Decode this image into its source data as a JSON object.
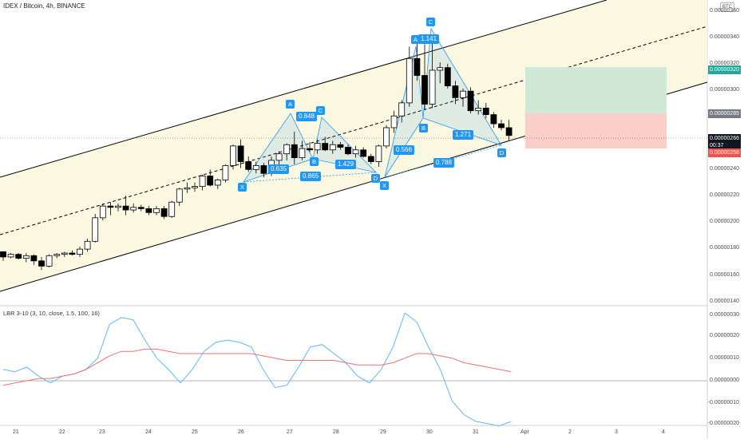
{
  "header": {
    "symbol_title": "IDEX / Bitcoin, 4h, BINANCE",
    "currency_badge": "BTC"
  },
  "price_axis": {
    "labels": [
      "0.00000360",
      "0.00000340",
      "0.00000320",
      "0.00000300",
      "0.00000280",
      "0.00000260",
      "0.00000240",
      "0.00000220",
      "0.00000200",
      "0.00000180",
      "0.00000160",
      "0.00000140"
    ],
    "tags": {
      "target": "0.00000320",
      "entry": "0.00000285",
      "current": "0.00000266",
      "countdown": "00:37",
      "stop": "0.00000258"
    }
  },
  "indicator": {
    "title": "LBR 3-10 (3, 10, close, 1.5, 100, 16)",
    "labels": [
      "0.00000030",
      "0.00000020",
      "0.00000010",
      "0.00000000",
      "-0.00000010",
      "-0.00000020"
    ]
  },
  "time_axis": {
    "labels": [
      "21",
      "22",
      "23",
      "24",
      "25",
      "26",
      "27",
      "28",
      "29",
      "30",
      "31",
      "Apr",
      "2",
      "3",
      "4"
    ]
  },
  "patterns": {
    "ratios": [
      "0.848",
      "0.635",
      "0.865",
      "1.429",
      "1.141",
      "0.566",
      "1.271",
      "0.788"
    ],
    "points": [
      "A",
      "B",
      "C",
      "D",
      "X",
      "A",
      "B",
      "C",
      "D",
      "X"
    ]
  },
  "colors": {
    "background": "#ffffff",
    "channel_fill": "#fbf8e2",
    "bull_candle": "#ffffff",
    "bear_candle": "#000000",
    "pattern_blue": "#2196f3",
    "target_zone": "#cfe9d6",
    "stop_zone": "#f9cfc8",
    "signal_line": "#e57373"
  },
  "chart_data": {
    "type": "candlestick",
    "interval": "4h",
    "x_dates": [
      "21",
      "22",
      "23",
      "24",
      "25",
      "26",
      "27",
      "28",
      "29",
      "30",
      "31"
    ],
    "ylim": [
      1.4e-06,
      3.6e-06
    ],
    "last_close": 2.66e-06,
    "position": {
      "entry": 2.85e-06,
      "target": 3.2e-06,
      "stop": 2.58e-06
    },
    "candles_ohlc": [
      [
        1.77,
        1.77,
        1.7,
        1.73
      ],
      [
        1.73,
        1.76,
        1.72,
        1.75
      ],
      [
        1.75,
        1.76,
        1.71,
        1.72
      ],
      [
        1.72,
        1.76,
        1.69,
        1.74
      ],
      [
        1.74,
        1.75,
        1.67,
        1.7
      ],
      [
        1.7,
        1.73,
        1.63,
        1.66
      ],
      [
        1.66,
        1.75,
        1.65,
        1.74
      ],
      [
        1.74,
        1.76,
        1.72,
        1.75
      ],
      [
        1.75,
        1.77,
        1.73,
        1.76
      ],
      [
        1.76,
        1.78,
        1.74,
        1.75
      ],
      [
        1.75,
        1.81,
        1.73,
        1.79
      ],
      [
        1.79,
        1.87,
        1.77,
        1.85
      ],
      [
        1.85,
        2.06,
        1.84,
        2.03
      ],
      [
        2.03,
        2.14,
        2.01,
        2.12
      ],
      [
        2.12,
        2.15,
        2.05,
        2.11
      ],
      [
        2.11,
        2.14,
        2.08,
        2.12
      ],
      [
        2.12,
        2.2,
        2.05,
        2.09
      ],
      [
        2.09,
        2.14,
        2.07,
        2.11
      ],
      [
        2.11,
        2.13,
        2.08,
        2.1
      ],
      [
        2.1,
        2.12,
        2.05,
        2.07
      ],
      [
        2.07,
        2.12,
        2.05,
        2.1
      ],
      [
        2.1,
        2.12,
        2.02,
        2.04
      ],
      [
        2.04,
        2.16,
        2.03,
        2.15
      ],
      [
        2.15,
        2.26,
        2.12,
        2.25
      ],
      [
        2.25,
        2.3,
        2.22,
        2.26
      ],
      [
        2.26,
        2.3,
        2.23,
        2.27
      ],
      [
        2.27,
        2.36,
        2.24,
        2.35
      ],
      [
        2.35,
        2.4,
        2.27,
        2.28
      ],
      [
        2.28,
        2.33,
        2.25,
        2.32
      ],
      [
        2.32,
        2.44,
        2.3,
        2.43
      ],
      [
        2.43,
        2.59,
        2.4,
        2.58
      ],
      [
        2.58,
        2.63,
        2.41,
        2.46
      ],
      [
        2.46,
        2.5,
        2.38,
        2.4
      ],
      [
        2.4,
        2.46,
        2.37,
        2.43
      ],
      [
        2.43,
        2.45,
        2.34,
        2.37
      ],
      [
        2.37,
        2.5,
        2.35,
        2.47
      ],
      [
        2.47,
        2.54,
        2.42,
        2.52
      ],
      [
        2.52,
        2.6,
        2.47,
        2.59
      ],
      [
        2.59,
        2.69,
        2.44,
        2.49
      ],
      [
        2.49,
        2.62,
        2.47,
        2.56
      ],
      [
        2.56,
        2.61,
        2.53,
        2.55
      ],
      [
        2.55,
        2.63,
        2.52,
        2.6
      ],
      [
        2.6,
        2.65,
        2.54,
        2.55
      ],
      [
        2.55,
        2.62,
        2.52,
        2.59
      ],
      [
        2.59,
        2.61,
        2.55,
        2.57
      ],
      [
        2.57,
        2.59,
        2.51,
        2.52
      ],
      [
        2.52,
        2.58,
        2.49,
        2.55
      ],
      [
        2.55,
        2.57,
        2.49,
        2.5
      ],
      [
        2.5,
        2.52,
        2.44,
        2.46
      ],
      [
        2.46,
        2.59,
        2.42,
        2.58
      ],
      [
        2.58,
        2.74,
        2.56,
        2.72
      ],
      [
        2.72,
        2.85,
        2.68,
        2.81
      ],
      [
        2.81,
        2.93,
        2.76,
        2.91
      ],
      [
        2.91,
        3.34,
        2.88,
        3.25
      ],
      [
        3.25,
        3.39,
        3.08,
        3.12
      ],
      [
        3.12,
        3.36,
        2.86,
        2.9
      ],
      [
        2.9,
        3.42,
        2.87,
        3.16
      ],
      [
        3.16,
        3.22,
        3.06,
        3.18
      ],
      [
        3.18,
        3.21,
        3.02,
        3.04
      ],
      [
        3.04,
        3.08,
        2.9,
        2.95
      ],
      [
        2.95,
        3.02,
        2.88,
        3.0
      ],
      [
        3.0,
        3.03,
        2.83,
        2.85
      ],
      [
        2.85,
        2.93,
        2.82,
        2.87
      ],
      [
        2.87,
        2.91,
        2.79,
        2.82
      ],
      [
        2.82,
        2.84,
        2.72,
        2.75
      ],
      [
        2.75,
        2.78,
        2.7,
        2.72
      ],
      [
        2.72,
        2.78,
        2.62,
        2.66
      ]
    ],
    "indicator_series": [
      {
        "name": "fast",
        "values": [
          0.05,
          0.04,
          0.06,
          0.02,
          -0.01,
          0.02,
          0.03,
          0.05,
          0.1,
          0.25,
          0.28,
          0.27,
          0.18,
          0.1,
          0.05,
          -0.01,
          0.05,
          0.13,
          0.17,
          0.18,
          0.17,
          0.15,
          0.05,
          -0.03,
          -0.02,
          0.06,
          0.15,
          0.16,
          0.12,
          0.08,
          0.02,
          -0.01,
          0.05,
          0.15,
          0.3,
          0.26,
          0.15,
          0.05,
          -0.09,
          -0.15,
          -0.18,
          -0.19,
          -0.2,
          -0.18
        ]
      },
      {
        "name": "signal",
        "values": [
          -0.02,
          -0.01,
          0.0,
          0.01,
          0.01,
          0.02,
          0.03,
          0.05,
          0.08,
          0.11,
          0.13,
          0.13,
          0.14,
          0.14,
          0.13,
          0.12,
          0.12,
          0.12,
          0.12,
          0.12,
          0.12,
          0.12,
          0.11,
          0.1,
          0.09,
          0.09,
          0.09,
          0.09,
          0.09,
          0.08,
          0.07,
          0.07,
          0.07,
          0.08,
          0.1,
          0.12,
          0.12,
          0.11,
          0.1,
          0.08,
          0.07,
          0.06,
          0.05,
          0.04
        ]
      }
    ]
  }
}
